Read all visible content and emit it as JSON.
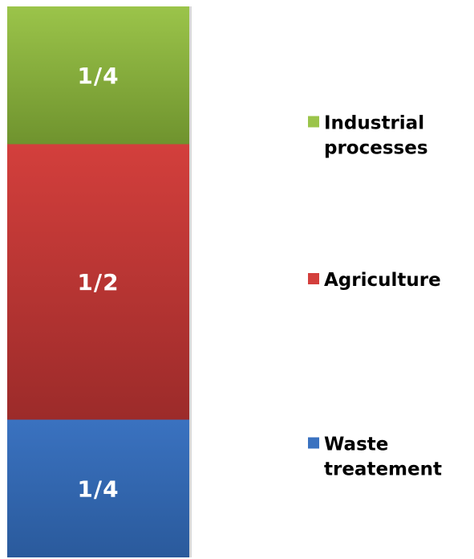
{
  "chart_data": {
    "type": "bar",
    "stacked": true,
    "title": "",
    "xlabel": "",
    "ylabel": "",
    "categories": [
      ""
    ],
    "series": [
      {
        "name": "Waste treatement",
        "value": 0.25,
        "label": "1/4",
        "color": "#3a72c0",
        "color_dark": "#2a5a9c",
        "legend_lines": [
          "Waste",
          "treatement"
        ]
      },
      {
        "name": "Agriculture",
        "value": 0.5,
        "label": "1/2",
        "color": "#d33f3c",
        "color_dark": "#9c2b2a",
        "legend_lines": [
          "Agriculture"
        ]
      },
      {
        "name": "Industrial processes",
        "value": 0.25,
        "label": "1/4",
        "color": "#9bc44a",
        "color_dark": "#6f932e",
        "legend_lines": [
          "Industrial",
          "processes"
        ]
      }
    ],
    "ylim": [
      0,
      1
    ],
    "legend_position": "right",
    "grid": false
  }
}
